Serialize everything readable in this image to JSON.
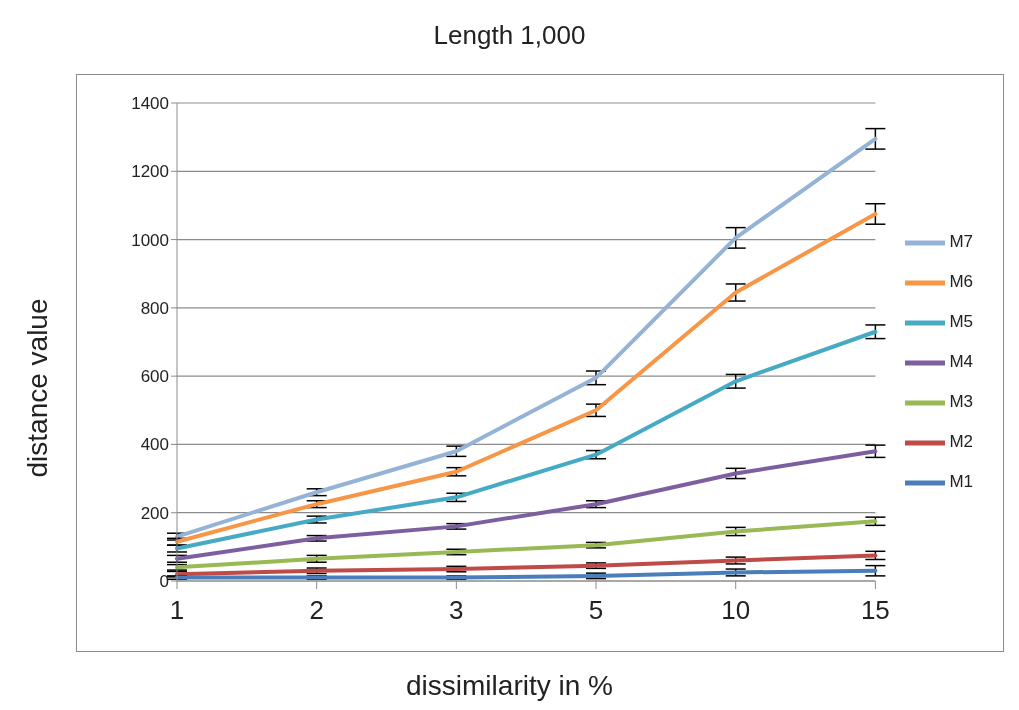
{
  "chart_data": {
    "type": "line",
    "title": "Length 1,000",
    "xlabel": "dissimilarity in %",
    "ylabel": "distance value",
    "categories": [
      "1",
      "2",
      "3",
      "5",
      "10",
      "15"
    ],
    "ylim": [
      0,
      1400
    ],
    "yticks": [
      0,
      200,
      400,
      600,
      800,
      1000,
      1200,
      1400
    ],
    "grid": "y",
    "legend": "right",
    "marker": "none",
    "line_style": "solid",
    "series": [
      {
        "name": "M7",
        "color": "#95b3d7",
        "values": [
          130,
          260,
          380,
          595,
          1005,
          1295
        ],
        "errors": [
          10,
          10,
          15,
          20,
          30,
          30
        ]
      },
      {
        "name": "M6",
        "color": "#f79646",
        "values": [
          115,
          225,
          320,
          500,
          845,
          1075
        ],
        "errors": [
          10,
          10,
          12,
          18,
          25,
          30
        ]
      },
      {
        "name": "M5",
        "color": "#46aac5",
        "values": [
          95,
          180,
          245,
          370,
          585,
          730
        ],
        "errors": [
          10,
          10,
          12,
          12,
          20,
          20
        ]
      },
      {
        "name": "M4",
        "color": "#7d5fa0",
        "values": [
          65,
          125,
          160,
          225,
          315,
          380
        ],
        "errors": [
          10,
          8,
          8,
          10,
          15,
          18
        ]
      },
      {
        "name": "M3",
        "color": "#98b954",
        "values": [
          40,
          65,
          85,
          105,
          145,
          175
        ],
        "errors": [
          8,
          10,
          8,
          8,
          12,
          12
        ]
      },
      {
        "name": "M2",
        "color": "#be4b48",
        "values": [
          20,
          30,
          35,
          45,
          60,
          75
        ],
        "errors": [
          8,
          8,
          8,
          8,
          10,
          12
        ]
      },
      {
        "name": "M1",
        "color": "#4a7ebb",
        "values": [
          10,
          10,
          10,
          15,
          25,
          30
        ],
        "errors": [
          5,
          5,
          5,
          8,
          10,
          15
        ]
      }
    ]
  }
}
